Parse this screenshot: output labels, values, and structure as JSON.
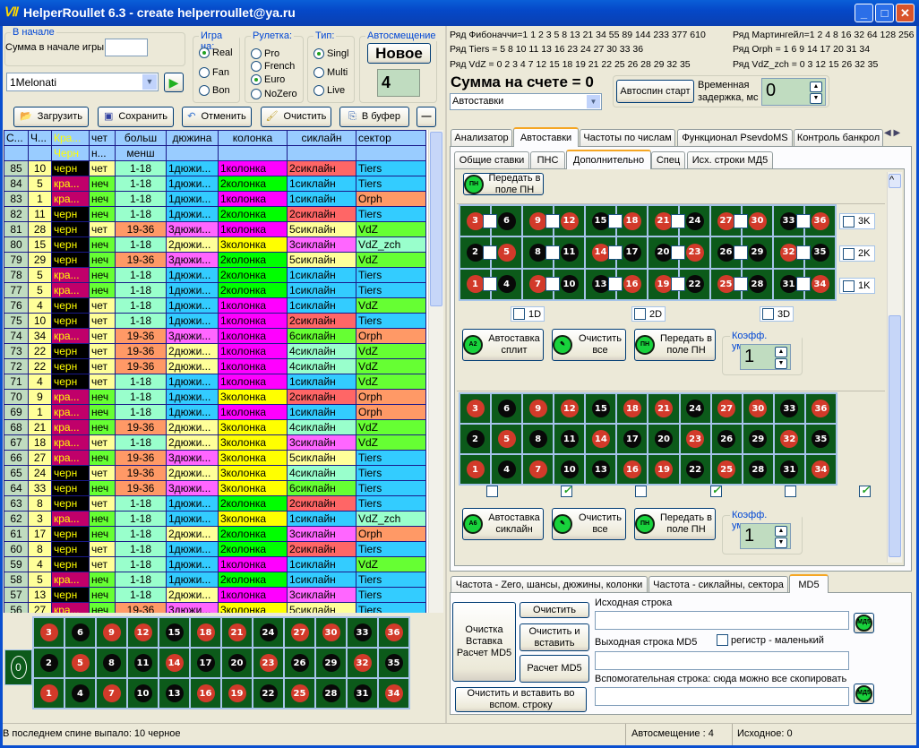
{
  "window": {
    "title": "HelperRoullet 6.3 - create helperroullet@ya.ru"
  },
  "start": {
    "group": "В начале",
    "sum_label": "Сумма в начале игры",
    "sum_value": "",
    "combo": "1Melonati"
  },
  "game": {
    "label": "Игра на:",
    "options": [
      "Real",
      "Fan",
      "Bon"
    ],
    "selected": "Real"
  },
  "roulette": {
    "label": "Рулетка:",
    "options": [
      "Pro",
      "French",
      "Euro",
      "NoZero"
    ],
    "selected": "Euro"
  },
  "type": {
    "label": "Тип:",
    "options": [
      "Singl",
      "Multi",
      "Live"
    ],
    "selected": "Singl"
  },
  "autoshift": {
    "label": "Автосмещение",
    "new_button": "Новое",
    "value": "4"
  },
  "toolbar": {
    "load": "Загрузить",
    "save": "Сохранить",
    "undo": "Отменить",
    "clear": "Очистить",
    "copy": "В буфер",
    "minus": "—"
  },
  "grid": {
    "headers1": [
      "С...",
      "Ч...",
      "Кра...",
      "чет",
      "больш",
      "дюжина",
      "колонка",
      "сиклайн",
      "сектор"
    ],
    "headers2": [
      "",
      "",
      "Черн",
      "н...",
      "менш",
      "",
      "",
      "",
      ""
    ],
    "rows": [
      [
        "85",
        "10",
        "черн",
        "чет",
        "1-18",
        "1дюжи...",
        "1колонка",
        "2сиклайн",
        "Tiers"
      ],
      [
        "84",
        "5",
        "кра...",
        "неч",
        "1-18",
        "1дюжи...",
        "2колонка",
        "1сиклайн",
        "Tiers"
      ],
      [
        "83",
        "1",
        "кра...",
        "неч",
        "1-18",
        "1дюжи...",
        "1колонка",
        "1сиклайн",
        "Orph"
      ],
      [
        "82",
        "11",
        "черн",
        "неч",
        "1-18",
        "1дюжи...",
        "2колонка",
        "2сиклайн",
        "Tiers"
      ],
      [
        "81",
        "28",
        "черн",
        "чет",
        "19-36",
        "3дюжи...",
        "1колонка",
        "5сиклайн",
        "VdZ"
      ],
      [
        "80",
        "15",
        "черн",
        "неч",
        "1-18",
        "2дюжи...",
        "3колонка",
        "3сиклайн",
        "VdZ_zch"
      ],
      [
        "79",
        "29",
        "черн",
        "неч",
        "19-36",
        "3дюжи...",
        "2колонка",
        "5сиклайн",
        "VdZ"
      ],
      [
        "78",
        "5",
        "кра...",
        "неч",
        "1-18",
        "1дюжи...",
        "2колонка",
        "1сиклайн",
        "Tiers"
      ],
      [
        "77",
        "5",
        "кра...",
        "неч",
        "1-18",
        "1дюжи...",
        "2колонка",
        "1сиклайн",
        "Tiers"
      ],
      [
        "76",
        "4",
        "черн",
        "чет",
        "1-18",
        "1дюжи...",
        "1колонка",
        "1сиклайн",
        "VdZ"
      ],
      [
        "75",
        "10",
        "черн",
        "чет",
        "1-18",
        "1дюжи...",
        "1колонка",
        "2сиклайн",
        "Tiers"
      ],
      [
        "74",
        "34",
        "кра...",
        "чет",
        "19-36",
        "3дюжи...",
        "1колонка",
        "6сиклайн",
        "Orph"
      ],
      [
        "73",
        "22",
        "черн",
        "чет",
        "19-36",
        "2дюжи...",
        "1колонка",
        "4сиклайн",
        "VdZ"
      ],
      [
        "72",
        "22",
        "черн",
        "чет",
        "19-36",
        "2дюжи...",
        "1колонка",
        "4сиклайн",
        "VdZ"
      ],
      [
        "71",
        "4",
        "черн",
        "чет",
        "1-18",
        "1дюжи...",
        "1колонка",
        "1сиклайн",
        "VdZ"
      ],
      [
        "70",
        "9",
        "кра...",
        "неч",
        "1-18",
        "1дюжи...",
        "3колонка",
        "2сиклайн",
        "Orph"
      ],
      [
        "69",
        "1",
        "кра...",
        "неч",
        "1-18",
        "1дюжи...",
        "1колонка",
        "1сиклайн",
        "Orph"
      ],
      [
        "68",
        "21",
        "кра...",
        "неч",
        "19-36",
        "2дюжи...",
        "3колонка",
        "4сиклайн",
        "VdZ"
      ],
      [
        "67",
        "18",
        "кра...",
        "чет",
        "1-18",
        "2дюжи...",
        "3колонка",
        "3сиклайн",
        "VdZ"
      ],
      [
        "66",
        "27",
        "кра...",
        "неч",
        "19-36",
        "3дюжи...",
        "3колонка",
        "5сиклайн",
        "Tiers"
      ],
      [
        "65",
        "24",
        "черн",
        "чет",
        "19-36",
        "2дюжи...",
        "3колонка",
        "4сиклайн",
        "Tiers"
      ],
      [
        "64",
        "33",
        "черн",
        "неч",
        "19-36",
        "3дюжи...",
        "3колонка",
        "6сиклайн",
        "Tiers"
      ],
      [
        "63",
        "8",
        "черн",
        "чет",
        "1-18",
        "1дюжи...",
        "2колонка",
        "2сиклайн",
        "Tiers"
      ],
      [
        "62",
        "3",
        "кра...",
        "неч",
        "1-18",
        "1дюжи...",
        "3колонка",
        "1сиклайн",
        "VdZ_zch"
      ],
      [
        "61",
        "17",
        "черн",
        "неч",
        "1-18",
        "2дюжи...",
        "2колонка",
        "3сиклайн",
        "Orph"
      ],
      [
        "60",
        "8",
        "черн",
        "чет",
        "1-18",
        "1дюжи...",
        "2колонка",
        "2сиклайн",
        "Tiers"
      ],
      [
        "59",
        "4",
        "черн",
        "чет",
        "1-18",
        "1дюжи...",
        "1колонка",
        "1сиклайн",
        "VdZ"
      ],
      [
        "58",
        "5",
        "кра...",
        "неч",
        "1-18",
        "1дюжи...",
        "2колонка",
        "1сиклайн",
        "Tiers"
      ],
      [
        "57",
        "13",
        "черн",
        "неч",
        "1-18",
        "2дюжи...",
        "1колонка",
        "3сиклайн",
        "Tiers"
      ],
      [
        "56",
        "27",
        "кра...",
        "неч",
        "19-36",
        "3дюжи...",
        "3колонка",
        "5сиклайн",
        "Tiers"
      ]
    ]
  },
  "colors": {
    "header": "#99ccff",
    "spin_col": "#c0dcc0",
    "num_col": "#ffff99",
    "черн": "#000000",
    "кра...": "#c0006a",
    "color_text": "#ffff00",
    "чет": "#ffff99",
    "неч": "#66ff33",
    "1-18": "#99ffcc",
    "19-36": "#ff9966",
    "1дюжи...": "#33ccff",
    "2дюжи...": "#ffff99",
    "3дюжи...": "#ff66ff",
    "1колонка": "#ff00ff",
    "2колонка": "#00ff00",
    "3колонка": "#ffff00",
    "1сиклайн": "#33ccff",
    "2сиклайн": "#ff6666",
    "3сиклайн": "#ff66ff",
    "4сиклайн": "#99ffcc",
    "5сиклайн": "#ffff99",
    "6сиклайн": "#66ff33",
    "Tiers": "#33ccff",
    "Orph": "#ff9966",
    "VdZ": "#66ff33",
    "VdZ_zch": "#99ffcc",
    "red": "#d23a2a",
    "black": "#080808",
    "felt": "#0c5a1a"
  },
  "wheel": {
    "zero": "0",
    "red_numbers": [
      1,
      3,
      5,
      7,
      9,
      12,
      14,
      16,
      18,
      19,
      21,
      23,
      25,
      27,
      30,
      32,
      34,
      36
    ]
  },
  "series": {
    "fib": "Ряд Фибоначчи=1 1 2 3 5 8 13 21 34 55 89 144 233 377 610",
    "tiers": "Ряд Tiers = 5 8 10 11 13 16 23 24 27 30 33 36",
    "vdz": "Ряд VdZ = 0 2 3 4 7 12 15 18 19 21 22 25 26 28 29 32 35",
    "mart": "Ряд Мартингейл=1 2 4 8 16 32 64 128 256",
    "orph": "Ряд Orph = 1 6 9 14 17 20 31 34",
    "vdzzch": "Ряд VdZ_zch = 0 3 12 15 26 32 35"
  },
  "account": {
    "sum": "Сумма на счете = 0",
    "combo": "Автоставки",
    "autospin": "Автоспин старт",
    "delay_label": "Временная задержка, мс",
    "delay_value": "0"
  },
  "tabs": [
    "Анализатор",
    "Автоставки",
    "Частоты по числам",
    "Функционал PsevdoMS",
    "Контроль банкрол"
  ],
  "subtabs": [
    "Общие ставки",
    "ПНС",
    "Дополнительно",
    "Спец",
    "Исх. строки МД5"
  ],
  "extra": {
    "transfer": "Передать в поле ПН",
    "columns_cb": [
      "3K",
      "2K",
      "1K"
    ],
    "dozens_cb": [
      "1D",
      "2D",
      "3D"
    ],
    "autosplit": "Автоставка сплит",
    "autosixline": "Автоставка сиклайн",
    "clear_all": "Очистить все",
    "coef_label": "Коэфф. умнож.",
    "coef1": "1",
    "coef2": "1",
    "sixline_checks": [
      false,
      true,
      false,
      true,
      false,
      true
    ]
  },
  "bottom_tabs": [
    "Частота - Zero, шансы, дюжины, колонки",
    "Частота - сиклайны, сектора",
    "MD5"
  ],
  "md5": {
    "big_button": "Очистка Вставка Расчет MD5",
    "clear": "Очистить",
    "clear_paste": "Очистить и вставить",
    "calc": "Расчет MD5",
    "clear_paste_aux": "Очистить и  вставить во вспом. строку",
    "src_label": "Исходная строка",
    "src_value": "",
    "out_label": "Выходная строка MD5",
    "out_value": "",
    "case_label": "регистр  - маленький",
    "aux_label": "Вспомогательная строка: сюда можно все скопировать",
    "aux_value": "",
    "icon": "МД5"
  },
  "status": {
    "last": "В последнем спине выпало: 10 черное",
    "shift": "Автосмещение : 4",
    "orig": "Исходное: 0"
  }
}
